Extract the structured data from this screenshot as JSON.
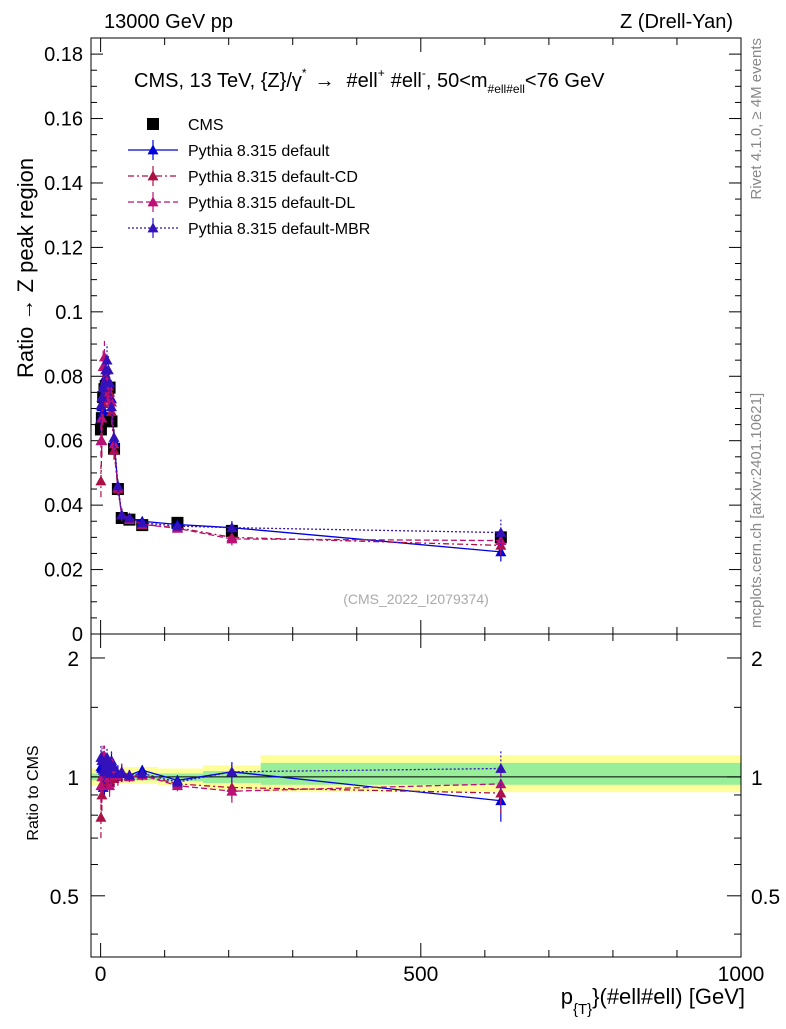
{
  "header": {
    "left": "13000 GeV pp",
    "right": "Z (Drell-Yan)"
  },
  "side_labels": {
    "rivet": "Rivet 4.1.0, ≥ 4M events",
    "mcplots": "mcplots.cern.ch [arXiv:2401.10621]"
  },
  "chart_data": [
    {
      "type": "scatter",
      "title": "CMS, 13 TeV, {Z}/γ* → #ell+ #ell-, 50<m#ell#ell<76 GeV",
      "title_parts": {
        "main": "CMS, 13 TeV, {Z}/γ",
        "sup_star": "*",
        "arrow": "→",
        "ell1": "#ell",
        "sup_plus": "+",
        "ell2": "#ell",
        "sup_minus": "-",
        "mid": ", 50<m",
        "sub": "#ell#ell",
        "end": "<76 GeV"
      },
      "ylabel": "Ratio → Z peak region",
      "xlim": [
        -15,
        1000
      ],
      "ylim": [
        0,
        0.185
      ],
      "yticks": [
        "0",
        "0.02",
        "0.04",
        "0.06",
        "0.08",
        "0.1",
        "0.12",
        "0.14",
        "0.16",
        "0.18"
      ],
      "ytick_values": [
        0,
        0.02,
        0.04,
        0.06,
        0.08,
        0.1,
        0.12,
        0.14,
        0.16,
        0.18
      ],
      "watermark": "(CMS_2022_I2079374)",
      "x": [
        0.5,
        2,
        4,
        6,
        8,
        10,
        12,
        14,
        17,
        21,
        27,
        33,
        45,
        65,
        120,
        205,
        625
      ],
      "series": [
        {
          "name": "CMS",
          "color": "#000000",
          "marker": "square",
          "values": [
            0.0635,
            0.067,
            0.0735,
            0.076,
            0.077,
            0.076,
            0.0762,
            0.0765,
            0.066,
            0.0575,
            0.045,
            0.036,
            0.0355,
            0.0338,
            0.0345,
            0.032,
            0.03
          ],
          "errors": [
            0.001,
            0.001,
            0.001,
            0.001,
            0.001,
            0.001,
            0.001,
            0.001,
            0.001,
            0.001,
            0.001,
            0.001,
            0.001,
            0.001,
            0.001,
            0.001,
            0.001
          ]
        },
        {
          "name": "Pythia 8.315 default",
          "color": "#0000dd",
          "line": "solid",
          "marker": "triangle",
          "values": [
            0.067,
            0.0705,
            0.069,
            0.073,
            0.08,
            0.079,
            0.077,
            0.074,
            0.073,
            0.06,
            0.046,
            0.037,
            0.036,
            0.035,
            0.034,
            0.033,
            0.0255
          ],
          "errors": [
            0.004,
            0.004,
            0.004,
            0.004,
            0.004,
            0.004,
            0.004,
            0.004,
            0.004,
            0.003,
            0.002,
            0.002,
            0.001,
            0.001,
            0.001,
            0.002,
            0.003
          ]
        },
        {
          "name": "Pythia 8.315 default-CD",
          "color": "#aa1144",
          "line": "dashdot",
          "marker": "triangle",
          "values": [
            0.0475,
            0.06,
            0.0715,
            0.0775,
            0.0785,
            0.078,
            0.077,
            0.075,
            0.069,
            0.057,
            0.045,
            0.037,
            0.036,
            0.034,
            0.033,
            0.03,
            0.0275
          ],
          "errors": [
            0.005,
            0.005,
            0.005,
            0.005,
            0.005,
            0.005,
            0.005,
            0.005,
            0.004,
            0.003,
            0.002,
            0.002,
            0.001,
            0.001,
            0.001,
            0.002,
            0.003
          ]
        },
        {
          "name": "Pythia 8.315 default-DL",
          "color": "#bb1177",
          "line": "dashed",
          "marker": "triangle",
          "values": [
            0.06,
            0.067,
            0.083,
            0.086,
            0.079,
            0.078,
            0.077,
            0.073,
            0.072,
            0.059,
            0.0455,
            0.037,
            0.0355,
            0.034,
            0.0328,
            0.0295,
            0.029
          ],
          "errors": [
            0.005,
            0.005,
            0.005,
            0.005,
            0.005,
            0.005,
            0.005,
            0.005,
            0.004,
            0.003,
            0.002,
            0.002,
            0.001,
            0.001,
            0.001,
            0.002,
            0.003
          ]
        },
        {
          "name": "Pythia 8.315 default-MBR",
          "color": "#3311bb",
          "line": "dotted",
          "marker": "triangle",
          "values": [
            0.071,
            0.0735,
            0.0765,
            0.078,
            0.082,
            0.085,
            0.082,
            0.078,
            0.0705,
            0.061,
            0.046,
            0.037,
            0.036,
            0.0345,
            0.0335,
            0.033,
            0.0315
          ],
          "errors": [
            0.005,
            0.005,
            0.005,
            0.005,
            0.005,
            0.005,
            0.005,
            0.005,
            0.004,
            0.003,
            0.002,
            0.002,
            0.001,
            0.001,
            0.001,
            0.002,
            0.004
          ]
        }
      ]
    },
    {
      "type": "scatter",
      "ylabel": "Ratio to CMS",
      "xlabel": "p{T}(#ell#ell) [GeV]",
      "xlabel_parts": {
        "p": "p",
        "sub": "{T}",
        "rest": "}(#ell#ell) [GeV]"
      },
      "xlim": [
        -15,
        1000
      ],
      "ylim": [
        0.35,
        2.3
      ],
      "yticks": [
        "0.5",
        "1",
        "2"
      ],
      "ytick_values": [
        0.5,
        1,
        2
      ],
      "xticks": [
        "0",
        "500",
        "1000"
      ],
      "xtick_values": [
        0,
        500,
        1000
      ],
      "bands": [
        {
          "x0": -15,
          "x1": 5,
          "yellow": [
            0.95,
            1.05
          ],
          "green": [
            0.98,
            1.02
          ]
        },
        {
          "x0": 5,
          "x1": 30,
          "yellow": [
            0.97,
            1.04
          ],
          "green": [
            0.985,
            1.015
          ]
        },
        {
          "x0": 30,
          "x1": 90,
          "yellow": [
            0.96,
            1.06
          ],
          "green": [
            0.98,
            1.02
          ]
        },
        {
          "x0": 90,
          "x1": 160,
          "yellow": [
            0.95,
            1.05
          ],
          "green": [
            0.975,
            1.02
          ]
        },
        {
          "x0": 160,
          "x1": 250,
          "yellow": [
            0.93,
            1.07
          ],
          "green": [
            0.965,
            1.035
          ]
        },
        {
          "x0": 250,
          "x1": 1000,
          "yellow": [
            0.915,
            1.135
          ],
          "green": [
            0.955,
            1.085
          ]
        }
      ],
      "x": [
        0.5,
        2,
        4,
        6,
        8,
        10,
        12,
        14,
        17,
        21,
        27,
        33,
        45,
        65,
        120,
        205,
        625
      ],
      "series": [
        {
          "name": "Pythia 8.315 default",
          "color": "#0000dd",
          "line": "solid",
          "values": [
            1.06,
            1.05,
            0.94,
            0.96,
            1.04,
            1.04,
            1.01,
            0.97,
            1.1,
            1.04,
            1.02,
            1.02,
            1.01,
            1.04,
            0.98,
            1.03,
            0.87
          ],
          "errors": [
            0.07,
            0.07,
            0.06,
            0.06,
            0.06,
            0.06,
            0.06,
            0.05,
            0.06,
            0.05,
            0.05,
            0.05,
            0.03,
            0.03,
            0.03,
            0.06,
            0.1
          ]
        },
        {
          "name": "Pythia 8.315 default-CD",
          "color": "#aa1144",
          "line": "dashdot",
          "values": [
            0.79,
            0.9,
            0.97,
            1.02,
            1.02,
            1.02,
            1.01,
            0.98,
            1.04,
            0.99,
            1.0,
            1.03,
            1.01,
            1.01,
            0.96,
            0.94,
            0.91
          ],
          "errors": [
            0.09,
            0.08,
            0.07,
            0.07,
            0.06,
            0.06,
            0.06,
            0.06,
            0.06,
            0.05,
            0.05,
            0.05,
            0.03,
            0.03,
            0.03,
            0.06,
            0.1
          ]
        },
        {
          "name": "Pythia 8.315 default-DL",
          "color": "#bb1177",
          "line": "dashed",
          "values": [
            0.95,
            1.0,
            1.13,
            1.13,
            1.03,
            1.03,
            1.01,
            0.95,
            1.09,
            1.03,
            1.01,
            1.03,
            1.0,
            1.01,
            0.95,
            0.92,
            0.96
          ],
          "errors": [
            0.09,
            0.08,
            0.07,
            0.07,
            0.06,
            0.06,
            0.06,
            0.06,
            0.06,
            0.05,
            0.05,
            0.05,
            0.03,
            0.03,
            0.03,
            0.06,
            0.11
          ]
        },
        {
          "name": "Pythia 8.315 default-MBR",
          "color": "#3311bb",
          "line": "dotted",
          "values": [
            1.12,
            1.1,
            1.04,
            1.03,
            1.06,
            1.12,
            1.08,
            1.02,
            1.07,
            1.06,
            1.02,
            1.03,
            1.01,
            1.02,
            0.97,
            1.03,
            1.05
          ],
          "errors": [
            0.09,
            0.08,
            0.07,
            0.07,
            0.06,
            0.06,
            0.06,
            0.06,
            0.06,
            0.05,
            0.05,
            0.05,
            0.03,
            0.03,
            0.03,
            0.06,
            0.12
          ]
        }
      ]
    }
  ]
}
